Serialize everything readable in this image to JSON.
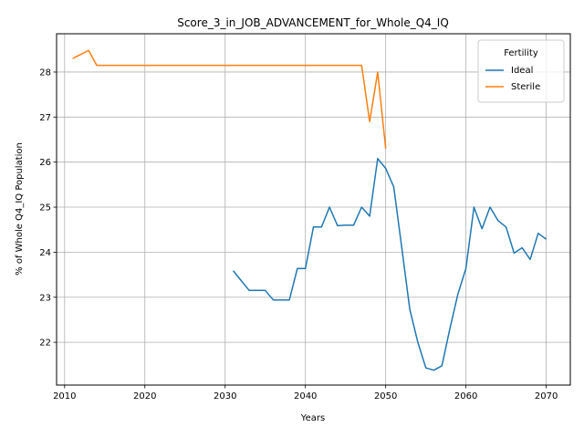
{
  "chart_data": {
    "type": "line",
    "title": "Score_3_in_JOB_ADVANCEMENT_for_Whole_Q4_IQ",
    "xlabel": "Years",
    "ylabel": "% of Whole Q4_IQ Population",
    "xlim": [
      2009,
      2073
    ],
    "ylim": [
      21.05,
      28.85
    ],
    "xticks": [
      2010,
      2020,
      2030,
      2040,
      2050,
      2060,
      2070
    ],
    "yticks": [
      22,
      23,
      24,
      25,
      26,
      27,
      28
    ],
    "grid": true,
    "legend": {
      "title": "Fertility",
      "position": "top-right"
    },
    "series": [
      {
        "name": "Ideal",
        "color": "#1f77b4",
        "x": [
          2031,
          2032,
          2033,
          2034,
          2035,
          2036,
          2037,
          2038,
          2039,
          2040,
          2041,
          2042,
          2043,
          2044,
          2045,
          2046,
          2047,
          2048,
          2049,
          2050,
          2051,
          2052,
          2053,
          2054,
          2055,
          2056,
          2057,
          2058,
          2059,
          2060,
          2061,
          2062,
          2063,
          2064,
          2065,
          2066,
          2067,
          2068,
          2069,
          2070
        ],
        "y": [
          23.59,
          23.37,
          23.15,
          23.15,
          23.15,
          22.94,
          22.94,
          22.94,
          23.64,
          23.64,
          24.56,
          24.56,
          25.0,
          24.59,
          24.6,
          24.6,
          25.0,
          24.8,
          26.08,
          25.86,
          25.45,
          24.1,
          22.73,
          22.0,
          21.43,
          21.38,
          21.48,
          22.3,
          23.07,
          23.64,
          25.0,
          24.52,
          25.0,
          24.7,
          24.56,
          23.98,
          24.1,
          23.84,
          24.42,
          24.29
        ]
      },
      {
        "name": "Sterile",
        "color": "#ff7f0e",
        "x": [
          2011,
          2012,
          2013,
          2014,
          2015,
          2016,
          2017,
          2018,
          2019,
          2020,
          2021,
          2022,
          2023,
          2024,
          2025,
          2026,
          2027,
          2028,
          2029,
          2030,
          2031,
          2032,
          2033,
          2034,
          2035,
          2036,
          2037,
          2038,
          2039,
          2040,
          2041,
          2042,
          2043,
          2044,
          2045,
          2046,
          2047,
          2048,
          2049,
          2050
        ],
        "y": [
          28.3,
          28.39,
          28.48,
          28.15,
          28.15,
          28.15,
          28.15,
          28.15,
          28.15,
          28.15,
          28.15,
          28.15,
          28.15,
          28.15,
          28.15,
          28.15,
          28.15,
          28.15,
          28.15,
          28.15,
          28.15,
          28.15,
          28.15,
          28.15,
          28.15,
          28.15,
          28.15,
          28.15,
          28.15,
          28.15,
          28.15,
          28.15,
          28.15,
          28.15,
          28.15,
          28.15,
          28.15,
          26.9,
          28.0,
          26.3
        ]
      }
    ]
  }
}
